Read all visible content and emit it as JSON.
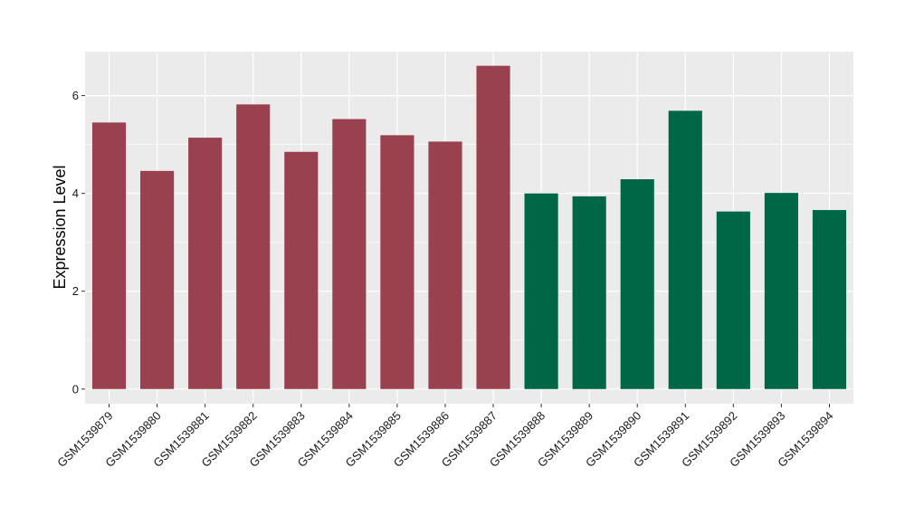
{
  "chart_data": {
    "type": "bar",
    "title": "",
    "xlabel": "",
    "ylabel": "Expression Level",
    "ylim": [
      -0.3,
      6.9
    ],
    "yticks": [
      0,
      2,
      4,
      6
    ],
    "grid": true,
    "legend": "none",
    "categories": [
      "GSM1539879",
      "GSM1539880",
      "GSM1539881",
      "GSM1539882",
      "GSM1539883",
      "GSM1539884",
      "GSM1539885",
      "GSM1539886",
      "GSM1539887",
      "GSM1539888",
      "GSM1539889",
      "GSM1539890",
      "GSM1539891",
      "GSM1539892",
      "GSM1539893",
      "GSM1539894"
    ],
    "values": [
      5.45,
      4.46,
      5.14,
      5.82,
      4.85,
      5.52,
      5.19,
      5.06,
      6.61,
      4.0,
      3.94,
      4.29,
      5.69,
      3.63,
      4.01,
      3.66
    ],
    "groups": [
      0,
      0,
      0,
      0,
      0,
      0,
      0,
      0,
      0,
      1,
      1,
      1,
      1,
      1,
      1,
      1
    ],
    "colors": [
      "#9a414f",
      "#006746"
    ],
    "panel_color": "#ebebeb",
    "grid_color": "#ffffff"
  }
}
